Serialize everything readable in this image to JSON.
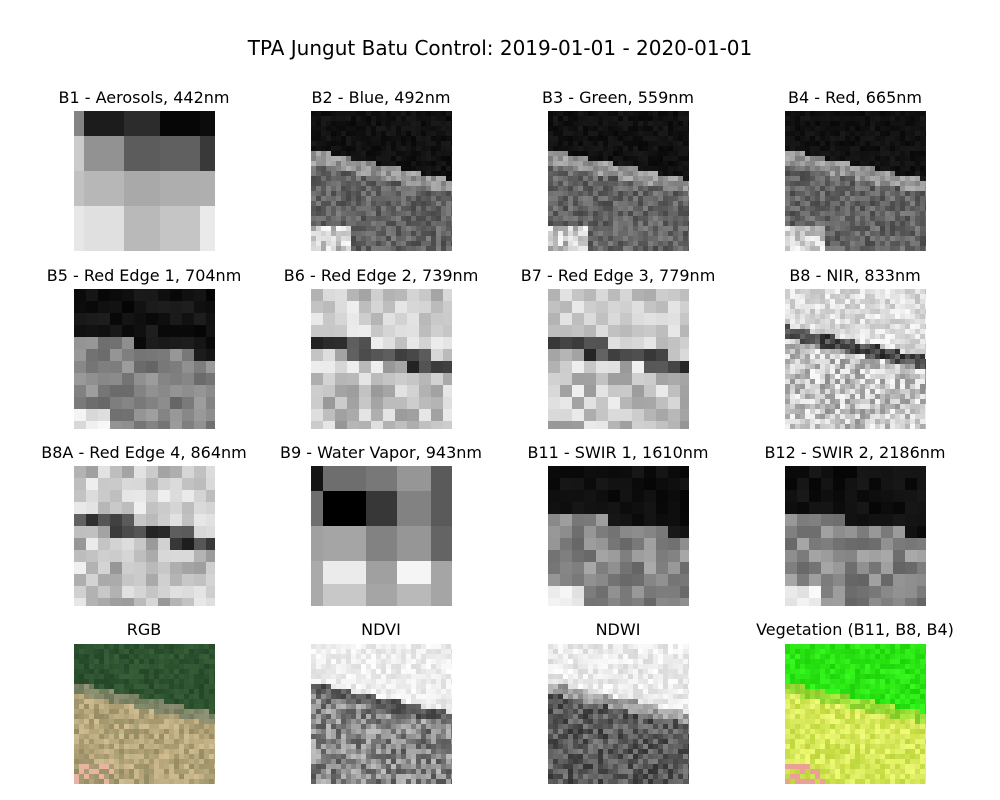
{
  "figure": {
    "title": "TPA Jungut Batu Control: 2019-01-01 - 2020-01-01"
  },
  "panels": [
    {
      "title": "B1 - Aerosols, 442nm",
      "kind": "gray",
      "pattern": "aerosols",
      "seed": 11
    },
    {
      "title": "B2 - Blue, 492nm",
      "kind": "gray",
      "pattern": "visible",
      "seed": 12
    },
    {
      "title": "B3 - Green, 559nm",
      "kind": "gray",
      "pattern": "visible",
      "seed": 13
    },
    {
      "title": "B4 - Red, 665nm",
      "kind": "gray",
      "pattern": "visible",
      "seed": 14
    },
    {
      "title": "B5 - Red Edge 1, 704nm",
      "kind": "gray",
      "pattern": "rededge1",
      "seed": 15
    },
    {
      "title": "B6 - Red Edge 2, 739nm",
      "kind": "gray",
      "pattern": "rededge",
      "seed": 16
    },
    {
      "title": "B7 - Red Edge 3, 779nm",
      "kind": "gray",
      "pattern": "rededge",
      "seed": 17
    },
    {
      "title": "B8 - NIR, 833nm",
      "kind": "gray",
      "pattern": "nir",
      "seed": 18
    },
    {
      "title": "B8A - Red Edge 4, 864nm",
      "kind": "gray",
      "pattern": "rededge",
      "seed": 19
    },
    {
      "title": "B9 - Water Vapor, 943nm",
      "kind": "gray",
      "pattern": "watervapor",
      "seed": 20
    },
    {
      "title": "B11 - SWIR 1, 1610nm",
      "kind": "gray",
      "pattern": "swir",
      "seed": 21
    },
    {
      "title": "B12 - SWIR 2, 2186nm",
      "kind": "gray",
      "pattern": "swir",
      "seed": 22
    },
    {
      "title": "RGB",
      "kind": "rgb",
      "pattern": "rgb",
      "seed": 23
    },
    {
      "title": "NDVI",
      "kind": "gray",
      "pattern": "ndvi",
      "seed": 24
    },
    {
      "title": "NDWI",
      "kind": "gray",
      "pattern": "ndwi",
      "seed": 25
    },
    {
      "title": "Vegetation (B11, B8, B4)",
      "kind": "rgb",
      "pattern": "vegetation",
      "seed": 26
    }
  ]
}
